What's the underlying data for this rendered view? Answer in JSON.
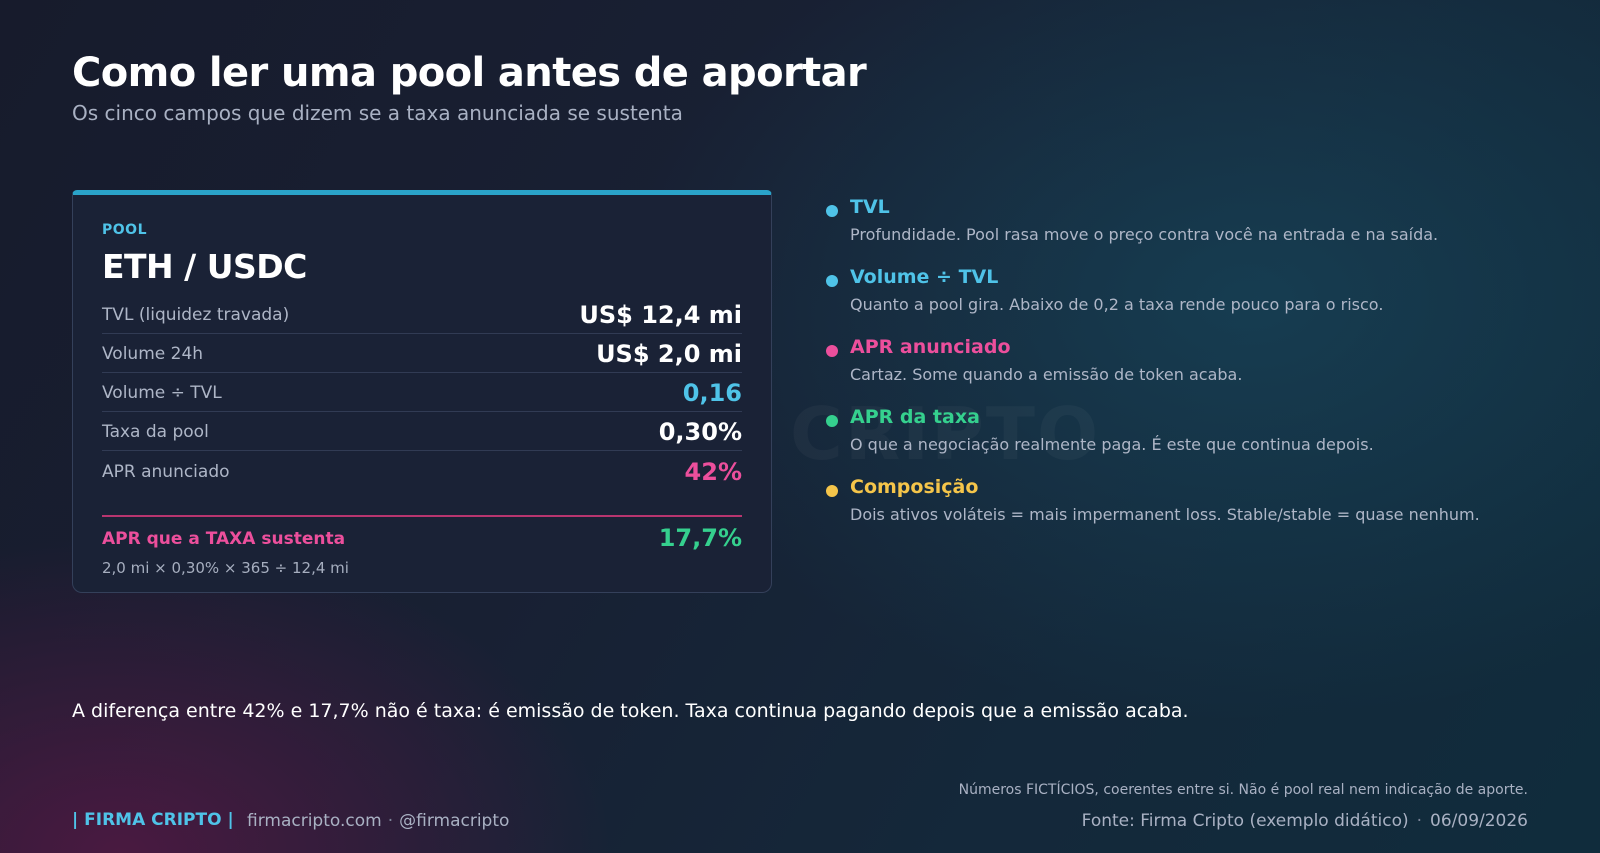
{
  "header": {
    "title": "Como ler uma pool antes de aportar",
    "subtitle": "Os cinco campos que dizem se a taxa anunciada se sustenta"
  },
  "watermark": "CRIPTO",
  "pool_card": {
    "label": "POOL",
    "pair": "ETH / USDC",
    "rows": [
      {
        "label": "TVL (liquidez travada)",
        "value": "US$ 12,4 mi",
        "color": "#ffffff"
      },
      {
        "label": "Volume 24h",
        "value": "US$ 2,0 mi",
        "color": "#ffffff"
      },
      {
        "label": "Volume ÷ TVL",
        "value": "0,16",
        "color": "#4fc3e8"
      },
      {
        "label": "Taxa da pool",
        "value": "0,30%",
        "color": "#ffffff"
      },
      {
        "label": "APR anunciado",
        "value": "42%",
        "color": "#ec4f9c"
      }
    ],
    "sustained_label": "APR que a TAXA sustenta",
    "sustained_value": "17,7%",
    "formula": "2,0 mi × 0,30% × 365 ÷ 12,4 mi"
  },
  "legend": [
    {
      "title": "TVL",
      "desc": "Profundidade. Pool rasa move o preço contra você na entrada e na saída.",
      "color": "#4fc3e8"
    },
    {
      "title": "Volume ÷ TVL",
      "desc": "Quanto a pool gira. Abaixo de 0,2 a taxa rende pouco para o risco.",
      "color": "#4fc3e8"
    },
    {
      "title": "APR anunciado",
      "desc": "Cartaz. Some quando a emissão de token acaba.",
      "color": "#ec4f9c"
    },
    {
      "title": "APR da taxa",
      "desc": "O que a negociação realmente paga. É este que continua depois.",
      "color": "#35d08e"
    },
    {
      "title": "Composição",
      "desc": "Dois ativos voláteis = mais impermanent loss. Stable/stable = quase nenhum.",
      "color": "#f5c54a"
    }
  ],
  "takeaway": "A diferença entre 42% e 17,7% não é taxa: é emissão de token. Taxa continua pagando depois que a emissão acaba.",
  "footer": {
    "brand": "| FIRMA CRIPTO |",
    "site": "firmacripto.com",
    "handle": "@firmacripto",
    "separator": "·",
    "disclaimer": "Números FICTÍCIOS, coerentes entre si. Não é pool real nem indicação de aporte.",
    "source": "Fonte: Firma Cripto (exemplo didático)",
    "date": "06/09/2026"
  }
}
